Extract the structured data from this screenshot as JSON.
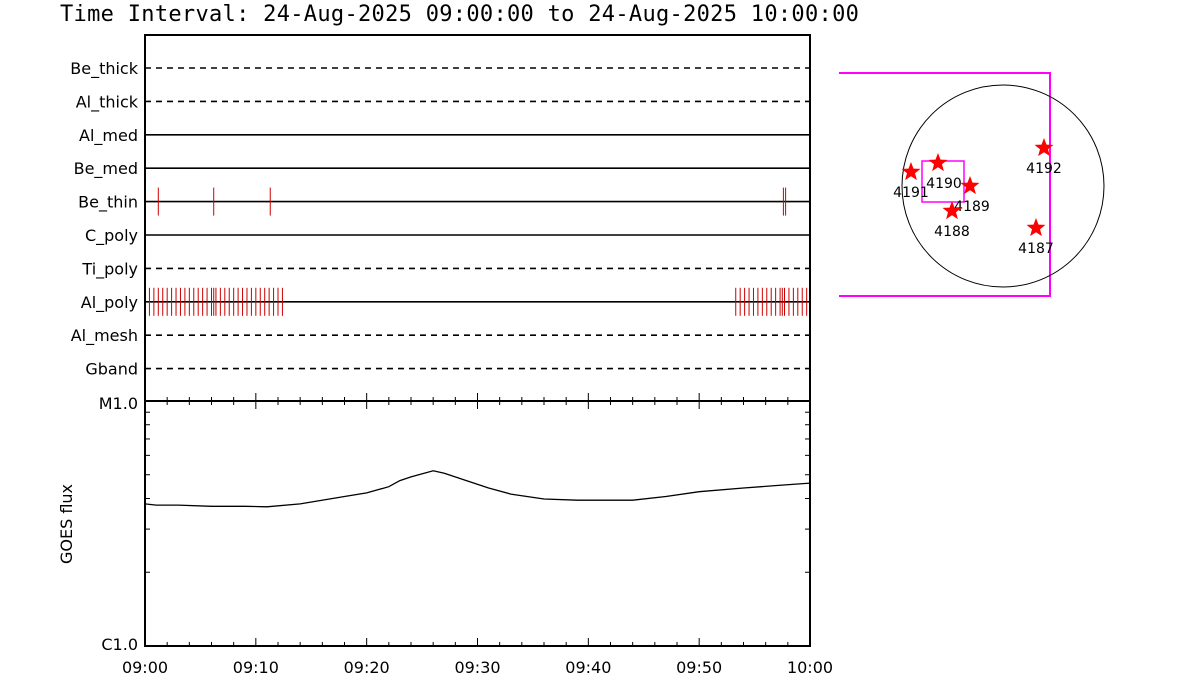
{
  "title": "Time Interval: 24-Aug-2025 09:00:00 to 24-Aug-2025 10:00:00",
  "colors": {
    "events": "#cc0000",
    "box": "#ff00ff",
    "star": "#ff0000",
    "axis": "#000000"
  },
  "chart_data": [
    {
      "type": "timeline",
      "x_unit": "minutes after 09:00",
      "xlim": [
        0,
        60
      ],
      "xticks": [
        "09:00",
        "09:10",
        "09:20",
        "09:30",
        "09:40",
        "09:50",
        "10:00"
      ],
      "channels": [
        {
          "name": "Be_thick",
          "style": "dashed",
          "events": []
        },
        {
          "name": "Al_thick",
          "style": "dashed",
          "events": []
        },
        {
          "name": "Al_med",
          "style": "solid",
          "events": []
        },
        {
          "name": "Be_med",
          "style": "solid",
          "events": []
        },
        {
          "name": "Be_thin",
          "style": "solid",
          "events": [
            1.2,
            6.2,
            11.3,
            57.6,
            57.8
          ]
        },
        {
          "name": "C_poly",
          "style": "solid",
          "events": []
        },
        {
          "name": "Ti_poly",
          "style": "dashed",
          "events": []
        },
        {
          "name": "Al_poly",
          "style": "solid",
          "events": [
            0.4,
            0.8,
            1.2,
            1.6,
            2.0,
            2.4,
            2.8,
            3.2,
            3.6,
            4.0,
            4.4,
            4.8,
            5.2,
            5.6,
            6.0,
            6.2,
            6.4,
            6.8,
            7.2,
            7.6,
            8.0,
            8.4,
            8.8,
            9.2,
            9.6,
            10.0,
            10.4,
            10.8,
            11.2,
            11.6,
            12.0,
            12.4,
            53.3,
            53.7,
            54.1,
            54.5,
            54.9,
            55.3,
            55.7,
            56.1,
            56.5,
            56.9,
            57.3,
            57.5,
            57.7,
            58.1,
            58.5,
            58.9,
            59.3,
            59.7
          ]
        },
        {
          "name": "Al_mesh",
          "style": "dashed",
          "events": []
        },
        {
          "name": "Gband",
          "style": "dashed",
          "events": []
        }
      ]
    },
    {
      "type": "line",
      "ylabel": "GOES flux",
      "yticks": [
        "M1.0",
        "C1.0"
      ],
      "ylim_log": [
        -6,
        -5
      ],
      "xlim": [
        0,
        60
      ],
      "xticks": [
        "09:00",
        "09:10",
        "09:20",
        "09:30",
        "09:40",
        "09:50",
        "10:00"
      ],
      "series": [
        {
          "x": [
            0,
            1,
            3,
            6,
            9,
            11,
            14,
            18,
            20,
            22,
            23,
            24,
            26,
            27,
            29,
            31,
            33,
            36,
            39,
            42,
            44,
            47,
            50,
            54,
            57,
            60
          ],
          "log_flux": [
            -5.42,
            -5.425,
            -5.425,
            -5.43,
            -5.43,
            -5.432,
            -5.42,
            -5.39,
            -5.375,
            -5.35,
            -5.325,
            -5.31,
            -5.285,
            -5.295,
            -5.325,
            -5.355,
            -5.38,
            -5.4,
            -5.405,
            -5.405,
            -5.405,
            -5.39,
            -5.37,
            -5.355,
            -5.345,
            -5.335
          ]
        }
      ]
    }
  ],
  "solar_map": {
    "regions": [
      {
        "label": "4191"
      },
      {
        "label": "4190"
      },
      {
        "label": "4189"
      },
      {
        "label": "4188"
      },
      {
        "label": "4192"
      },
      {
        "label": "4187"
      }
    ]
  }
}
